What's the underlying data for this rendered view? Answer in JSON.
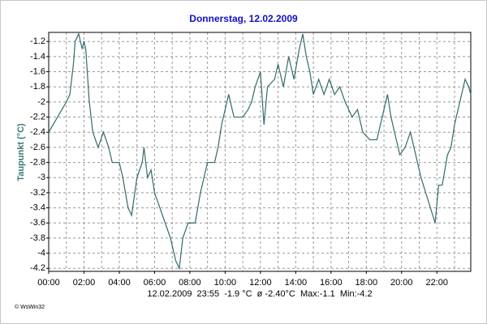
{
  "chart_data": {
    "type": "line",
    "title": "Donnerstag, 12.02.2009",
    "y_label": "Taupunkt  (°C)",
    "annotation": "12.02.2009  23:55  -1.9 °C  ø -2.40°C  Max:-1.1  Min:-4.2",
    "credit": "© WsWin32",
    "color": "#336b6b",
    "grid": true,
    "x": [
      0,
      0.5,
      1,
      1.2,
      1.4,
      1.5,
      1.7,
      1.9,
      2.0,
      2.1,
      2.3,
      2.5,
      2.8,
      3.1,
      3.4,
      3.6,
      4.0,
      4.2,
      4.5,
      4.7,
      5.0,
      5.3,
      5.4,
      5.6,
      5.8,
      6.0,
      6.3,
      6.6,
      6.9,
      7.2,
      7.4,
      7.6,
      7.9,
      8.3,
      8.6,
      8.8,
      9.0,
      9.4,
      9.6,
      9.8,
      10.0,
      10.2,
      10.5,
      11,
      11.3,
      11.5,
      11.7,
      12.0,
      12.2,
      12.4,
      12.8,
      13.0,
      13.3,
      13.6,
      13.9,
      14.2,
      14.4,
      14.6,
      14.8,
      15.0,
      15.3,
      15.6,
      15.9,
      16.2,
      16.5,
      16.8,
      17.2,
      17.5,
      17.8,
      18.2,
      18.6,
      18.9,
      19.2,
      19.4,
      19.6,
      19.9,
      20.2,
      20.5,
      20.8,
      21.1,
      21.5,
      21.9,
      22.1,
      22.3,
      22.6,
      22.8,
      23.0,
      23.3,
      23.6,
      23.8,
      23.92
    ],
    "values": [
      -2.4,
      -2.2,
      -2.0,
      -1.9,
      -1.5,
      -1.2,
      -1.1,
      -1.3,
      -1.2,
      -1.3,
      -2.0,
      -2.4,
      -2.6,
      -2.4,
      -2.6,
      -2.8,
      -2.8,
      -3.0,
      -3.4,
      -3.5,
      -3.0,
      -2.8,
      -2.6,
      -3.0,
      -2.9,
      -3.2,
      -3.4,
      -3.6,
      -3.8,
      -4.1,
      -4.2,
      -3.8,
      -3.6,
      -3.6,
      -3.2,
      -3.0,
      -2.8,
      -2.8,
      -2.6,
      -2.3,
      -2.1,
      -1.9,
      -2.2,
      -2.2,
      -2.1,
      -2.0,
      -1.8,
      -1.6,
      -2.3,
      -1.8,
      -1.7,
      -1.5,
      -1.8,
      -1.4,
      -1.7,
      -1.3,
      -1.1,
      -1.4,
      -1.6,
      -1.9,
      -1.7,
      -1.9,
      -1.7,
      -1.9,
      -1.8,
      -2.0,
      -2.2,
      -2.1,
      -2.4,
      -2.5,
      -2.5,
      -2.2,
      -1.9,
      -2.2,
      -2.4,
      -2.7,
      -2.6,
      -2.4,
      -2.7,
      -3.0,
      -3.3,
      -3.6,
      -3.1,
      -3.1,
      -2.7,
      -2.6,
      -2.3,
      -2.0,
      -1.7,
      -1.8,
      -1.9
    ],
    "xlim": [
      0,
      23.92
    ],
    "xticks": [
      {
        "value": 0,
        "label": "00:00"
      },
      {
        "value": 2,
        "label": "02:00"
      },
      {
        "value": 4,
        "label": "04:00"
      },
      {
        "value": 6,
        "label": "06:00"
      },
      {
        "value": 8,
        "label": "08:00"
      },
      {
        "value": 10,
        "label": "10:00"
      },
      {
        "value": 12,
        "label": "12:00"
      },
      {
        "value": 14,
        "label": "14:00"
      },
      {
        "value": 16,
        "label": "16:00"
      },
      {
        "value": 18,
        "label": "18:00"
      },
      {
        "value": 20,
        "label": "20:00"
      },
      {
        "value": 22,
        "label": "22:00"
      }
    ],
    "x_minor_ticks": [
      1,
      3,
      5,
      7,
      9,
      11,
      13,
      15,
      17,
      19,
      21,
      23
    ],
    "ylim": [
      -4.24,
      -1.08
    ],
    "yticks": [
      -4.2,
      -4,
      -3.8,
      -3.6,
      -3.4,
      -3.2,
      -3,
      -2.8,
      -2.6,
      -2.4,
      -2.2,
      -2,
      -1.8,
      -1.6,
      -1.4,
      -1.2
    ]
  }
}
